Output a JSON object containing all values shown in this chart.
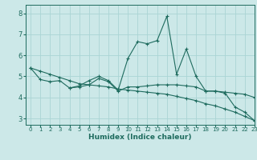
{
  "xlabel": "Humidex (Indice chaleur)",
  "background_color": "#cce8e8",
  "line_color": "#1e6b5e",
  "grid_color": "#aad4d4",
  "xlim": [
    -0.5,
    23
  ],
  "ylim": [
    2.7,
    8.4
  ],
  "yticks": [
    3,
    4,
    5,
    6,
    7,
    8
  ],
  "xticks": [
    0,
    1,
    2,
    3,
    4,
    5,
    6,
    7,
    8,
    9,
    10,
    11,
    12,
    13,
    14,
    15,
    16,
    17,
    18,
    19,
    20,
    21,
    22,
    23
  ],
  "series": [
    {
      "x": [
        0,
        1,
        2,
        3,
        4,
        5,
        6,
        7,
        8,
        9,
        10,
        11,
        12,
        13,
        14,
        15,
        16,
        17,
        18,
        19,
        20,
        21,
        22,
        23
      ],
      "y": [
        5.4,
        4.85,
        4.75,
        4.8,
        4.45,
        4.55,
        4.8,
        5.0,
        4.8,
        4.35,
        5.85,
        6.65,
        6.55,
        6.7,
        7.85,
        5.1,
        6.3,
        5.0,
        4.3,
        4.3,
        4.2,
        3.55,
        3.3,
        2.9
      ]
    },
    {
      "x": [
        4,
        5,
        6,
        7,
        8,
        9,
        10,
        11,
        12,
        13,
        14,
        15,
        16,
        17,
        18,
        19,
        20,
        21,
        22,
        23
      ],
      "y": [
        4.45,
        4.5,
        4.6,
        4.9,
        4.75,
        4.3,
        4.5,
        4.5,
        4.55,
        4.6,
        4.6,
        4.6,
        4.55,
        4.5,
        4.3,
        4.3,
        4.25,
        4.2,
        4.15,
        4.0
      ]
    },
    {
      "x": [
        0,
        1,
        2,
        3,
        4,
        5,
        6,
        7,
        8,
        9,
        10,
        11,
        12,
        13,
        14,
        15,
        16,
        17,
        18,
        19,
        20,
        21,
        22,
        23
      ],
      "y": [
        5.4,
        5.25,
        5.1,
        4.95,
        4.8,
        4.65,
        4.6,
        4.55,
        4.5,
        4.4,
        4.35,
        4.3,
        4.25,
        4.2,
        4.15,
        4.05,
        3.95,
        3.85,
        3.7,
        3.6,
        3.45,
        3.3,
        3.1,
        2.9
      ]
    }
  ]
}
